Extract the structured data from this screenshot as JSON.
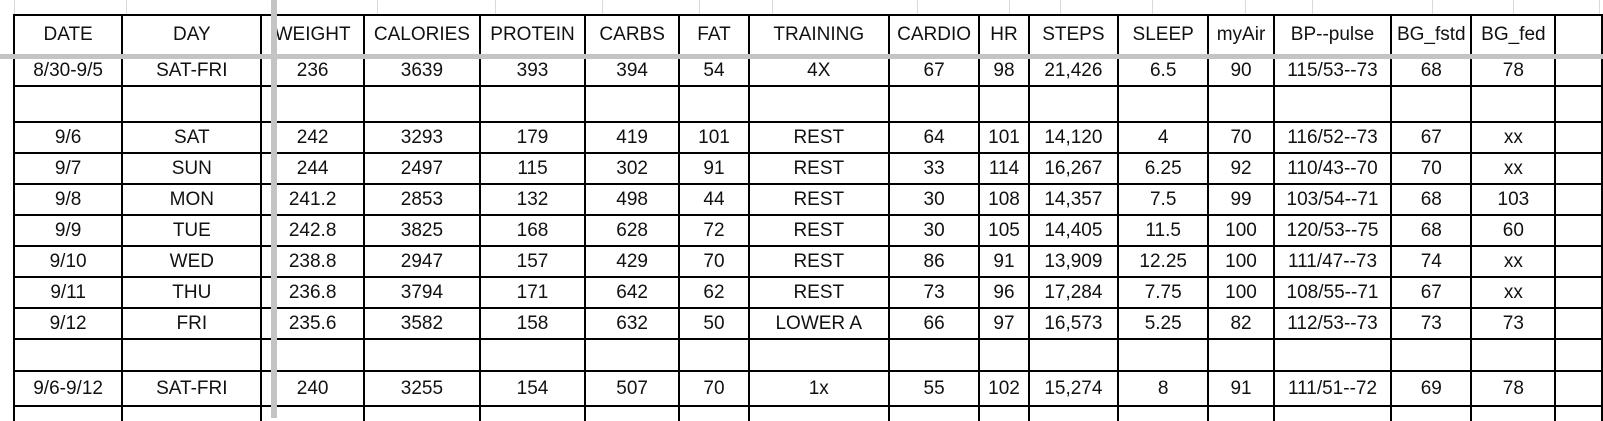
{
  "columns": [
    "DATE",
    "DAY",
    "WEIGHT",
    "CALORIES",
    "PROTEIN",
    "CARBS",
    "FAT",
    "TRAINING",
    "CARDIO",
    "HR",
    "STEPS",
    "SLEEP",
    "myAir",
    "BP--pulse",
    "BG_fstd",
    "BG_fed"
  ],
  "rows": [
    {
      "kind": "r",
      "cells": [
        "8/30-9/5",
        "SAT-FRI",
        "236",
        "3639",
        "393",
        "394",
        "54",
        "4X",
        "67",
        "98",
        "21,426",
        "6.5",
        "90",
        "115/53--73",
        "68",
        "78"
      ]
    },
    {
      "kind": "blank1",
      "cells": [
        "",
        "",
        "",
        "",
        "",
        "",
        "",
        "",
        "",
        "",
        "",
        "",
        "",
        "",
        "",
        ""
      ]
    },
    {
      "kind": "r",
      "cells": [
        "9/6",
        "SAT",
        "242",
        "3293",
        "179",
        "419",
        "101",
        "REST",
        "64",
        "101",
        "14,120",
        "4",
        "70",
        "116/52--73",
        "67",
        "xx"
      ]
    },
    {
      "kind": "r",
      "cells": [
        "9/7",
        "SUN",
        "244",
        "2497",
        "115",
        "302",
        "91",
        "REST",
        "33",
        "114",
        "16,267",
        "6.25",
        "92",
        "110/43--70",
        "70",
        "xx"
      ]
    },
    {
      "kind": "r",
      "cells": [
        "9/8",
        "MON",
        "241.2",
        "2853",
        "132",
        "498",
        "44",
        "REST",
        "30",
        "108",
        "14,357",
        "7.5",
        "99",
        "103/54--71",
        "68",
        "103"
      ]
    },
    {
      "kind": "r",
      "cells": [
        "9/9",
        "TUE",
        "242.8",
        "3825",
        "168",
        "628",
        "72",
        "REST",
        "30",
        "105",
        "14,405",
        "11.5",
        "100",
        "120/53--75",
        "68",
        "60"
      ]
    },
    {
      "kind": "r",
      "cells": [
        "9/10",
        "WED",
        "238.8",
        "2947",
        "157",
        "429",
        "70",
        "REST",
        "86",
        "91",
        "13,909",
        "12.25",
        "100",
        "111/47--73",
        "74",
        "xx"
      ]
    },
    {
      "kind": "r",
      "cells": [
        "9/11",
        "THU",
        "236.8",
        "3794",
        "171",
        "642",
        "62",
        "REST",
        "73",
        "96",
        "17,284",
        "7.75",
        "100",
        "108/55--71",
        "67",
        "xx"
      ]
    },
    {
      "kind": "r",
      "cells": [
        "9/12",
        "FRI",
        "235.6",
        "3582",
        "158",
        "632",
        "50",
        "LOWER A",
        "66",
        "97",
        "16,573",
        "5.25",
        "82",
        "112/53--73",
        "73",
        "73"
      ]
    },
    {
      "kind": "blank2",
      "cells": [
        "",
        "",
        "",
        "",
        "",
        "",
        "",
        "",
        "",
        "",
        "",
        "",
        "",
        "",
        "",
        ""
      ]
    },
    {
      "kind": "sum",
      "cells": [
        "9/6-9/12",
        "SAT-FRI",
        "240",
        "3255",
        "154",
        "507",
        "70",
        "1x",
        "55",
        "102",
        "15,274",
        "8",
        "91",
        "111/51--72",
        "69",
        "78"
      ]
    },
    {
      "kind": "part",
      "cells": [
        "",
        "",
        "",
        "",
        "",
        "",
        "",
        "",
        "",
        "",
        "",
        "",
        "",
        "",
        "",
        ""
      ]
    }
  ]
}
